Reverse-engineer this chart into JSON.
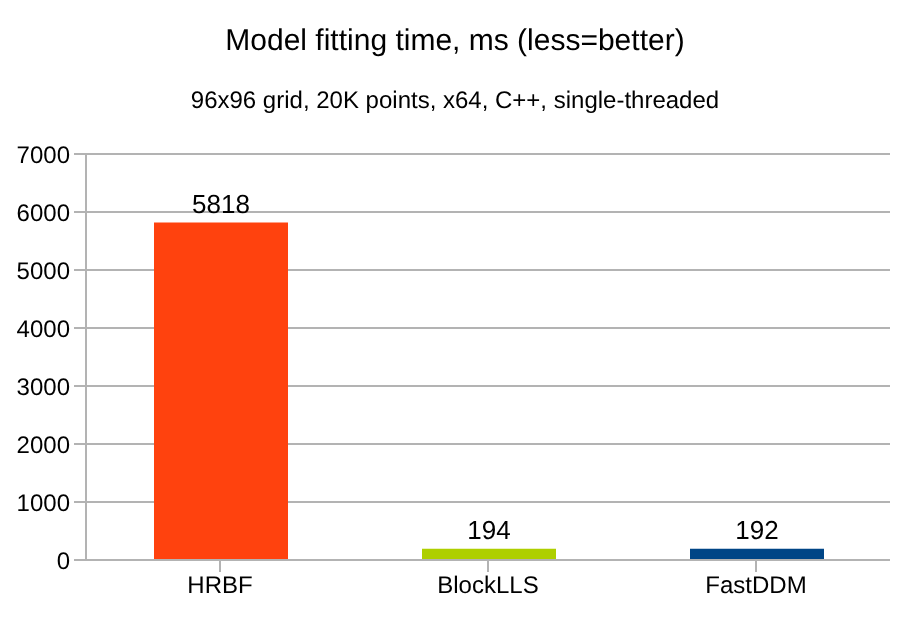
{
  "chart_data": {
    "type": "bar",
    "title": "Model fitting time, ms (less=better)",
    "subtitle": "96x96 grid, 20K points, x64, C++, single-threaded",
    "categories": [
      "HRBF",
      "BlockLLS",
      "FastDDM"
    ],
    "values": [
      5818,
      194,
      192
    ],
    "colors": [
      "#ff420e",
      "#aecf00",
      "#004586"
    ],
    "ylim": [
      0,
      7000
    ],
    "yticks": [
      0,
      1000,
      2000,
      3000,
      4000,
      5000,
      6000,
      7000
    ],
    "grid": "y",
    "data_labels": true
  }
}
